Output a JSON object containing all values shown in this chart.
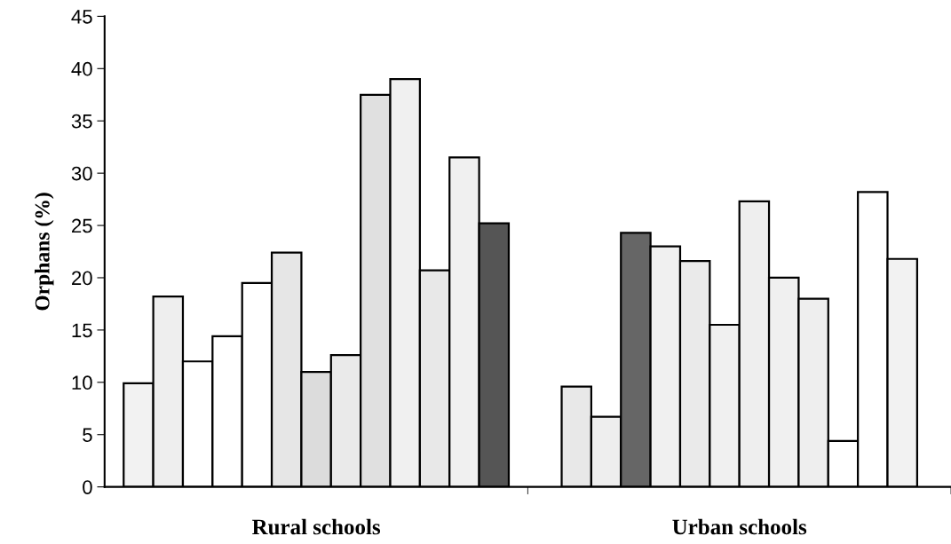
{
  "chart_data": {
    "type": "bar",
    "ylabel": "Orphans (%)",
    "categories": [
      "Rural schools",
      "Urban schools"
    ],
    "series": [
      {
        "values": [
          9.9,
          9.6
        ],
        "colors": [
          "#f2f2f2",
          "#e8e8e8"
        ]
      },
      {
        "values": [
          18.2,
          6.7
        ],
        "colors": [
          "#eeeeee",
          "#eeeeee"
        ]
      },
      {
        "values": [
          12.0,
          24.3
        ],
        "colors": [
          "#ffffff",
          "#666666"
        ]
      },
      {
        "values": [
          14.4,
          23.0
        ],
        "colors": [
          "#ffffff",
          "#f0f0f0"
        ]
      },
      {
        "values": [
          19.5,
          21.6
        ],
        "colors": [
          "#ffffff",
          "#eaeaea"
        ]
      },
      {
        "values": [
          22.4,
          15.5
        ],
        "colors": [
          "#e6e6e6",
          "#f0f0f0"
        ]
      },
      {
        "values": [
          11.0,
          27.3
        ],
        "colors": [
          "#dcdcdc",
          "#eeeeee"
        ]
      },
      {
        "values": [
          12.6,
          20.0
        ],
        "colors": [
          "#eaeaea",
          "#f0f0f0"
        ]
      },
      {
        "values": [
          37.5,
          18.0
        ],
        "colors": [
          "#e0e0e0",
          "#eeeeee"
        ]
      },
      {
        "values": [
          39.0,
          4.4
        ],
        "colors": [
          "#f0f0f0",
          "#ffffff"
        ]
      },
      {
        "values": [
          20.7,
          28.2
        ],
        "colors": [
          "#e8e8e8",
          "#ffffff"
        ]
      },
      {
        "values": [
          31.5,
          21.8
        ],
        "colors": [
          "#f0f0f0",
          "#f2f2f2"
        ]
      },
      {
        "values": [
          25.2,
          null
        ],
        "colors": [
          "#555555",
          null
        ]
      }
    ],
    "ylim": [
      0,
      45
    ],
    "yticks": [
      0,
      5,
      10,
      15,
      20,
      25,
      30,
      35,
      40,
      45
    ],
    "grid": false
  }
}
